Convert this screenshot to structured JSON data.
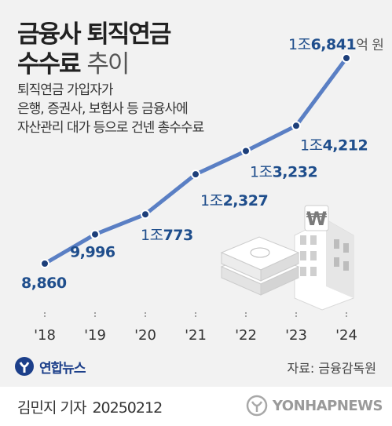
{
  "title": {
    "line1": "금융사 퇴직연금",
    "line2_bold": "수수료",
    "line2_light": "추이"
  },
  "subtitle_lines": [
    "퇴직연금 가입자가",
    "은행, 증권사, 보험사 등 금융사에",
    "자산관리 대가 등으로 건넨 총수수료"
  ],
  "colors": {
    "line": "#5a7fc4",
    "marker_fill": "#1d3f7a",
    "marker_stroke": "#ffffff",
    "label_text": "#1f4e8c",
    "unit_text": "#555555",
    "axis_text": "#333333",
    "brand": "#1c3f8a"
  },
  "chart_data": {
    "type": "line",
    "title": "금융사 퇴직연금 수수료 추이",
    "categories": [
      "'18",
      "'19",
      "'20",
      "'21",
      "'22",
      "'23",
      "'24"
    ],
    "series": [
      {
        "values": [
          8860,
          9996,
          10773,
          12327,
          13232,
          14212,
          16841
        ]
      }
    ],
    "data_labels": [
      {
        "prefix": "",
        "value": "8,860",
        "suffix": ""
      },
      {
        "prefix": "",
        "value": "9,996",
        "suffix": ""
      },
      {
        "prefix": "1조",
        "value": "773",
        "suffix": ""
      },
      {
        "prefix": "1조",
        "value": "2,327",
        "suffix": ""
      },
      {
        "prefix": "1조",
        "value": "3,232",
        "suffix": ""
      },
      {
        "prefix": "1조",
        "value": "4,212",
        "suffix": ""
      },
      {
        "prefix": "1조",
        "value": "6,841",
        "suffix": "억 원"
      }
    ],
    "xlabel": "",
    "ylabel": "",
    "grid": false
  },
  "source": "자료: 금융감독원",
  "brand": {
    "name": "연합뉴스"
  },
  "reporter": {
    "name": "김민지 기자",
    "date": "20250212"
  },
  "watermark": "YONHAPNEWS",
  "icons": {
    "illustration": "money-building-icon",
    "brand_logo": "yonhap-logo-icon",
    "watermark_logo": "yonhap-watermark-icon"
  }
}
